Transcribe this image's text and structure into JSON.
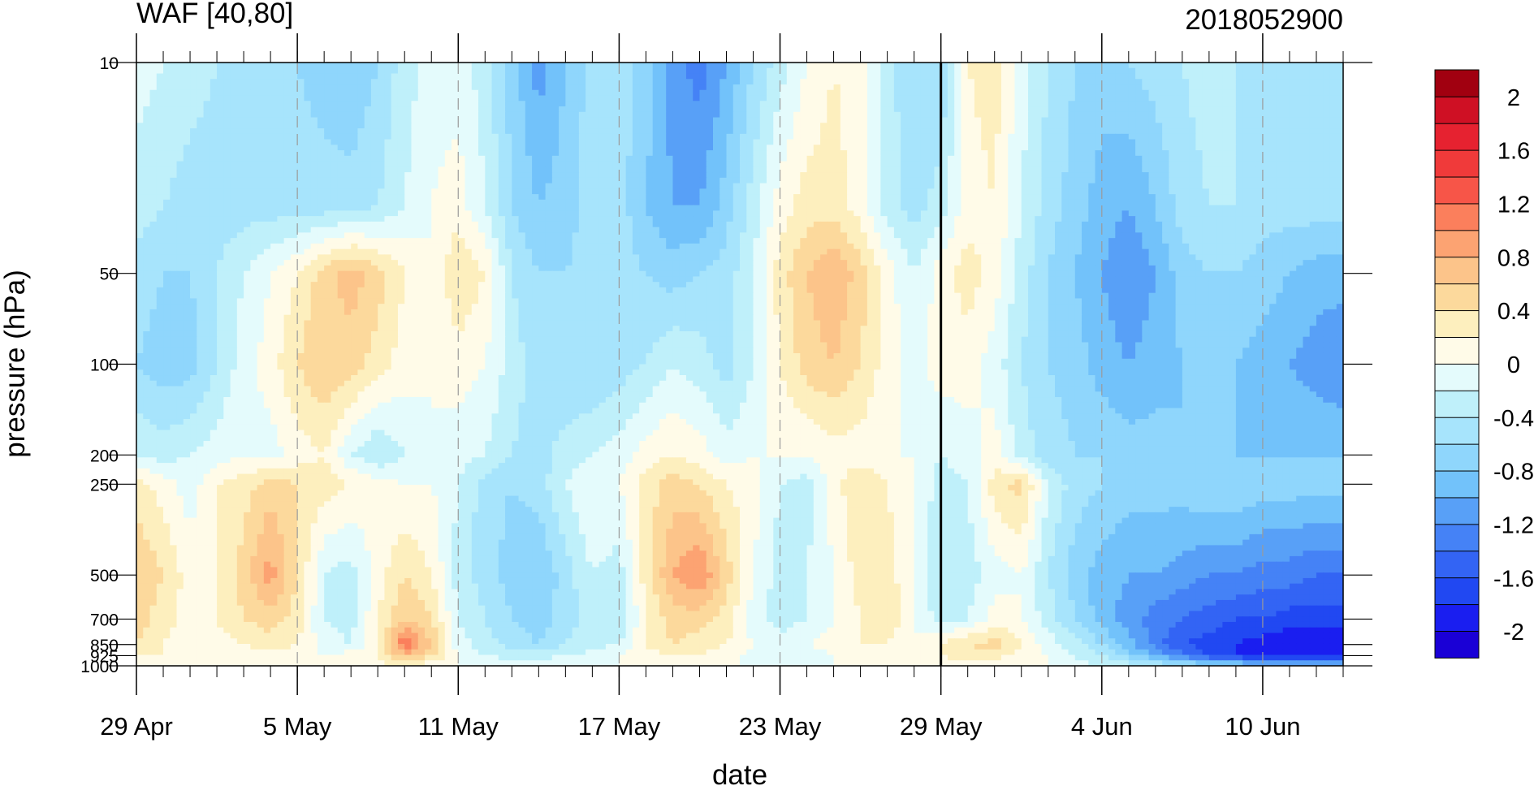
{
  "chart_data": {
    "type": "heatmap",
    "title": "WAF [40,80]",
    "subtitle": "2018052900",
    "xlabel": "date",
    "ylabel": "pressure (hPa)",
    "x_start": "2018-04-29",
    "x_end": "2018-06-13",
    "x_ticks": [
      {
        "label": "29 Apr",
        "date": "2018-04-29"
      },
      {
        "label": "5 May",
        "date": "2018-05-05"
      },
      {
        "label": "11 May",
        "date": "2018-05-11"
      },
      {
        "label": "17 May",
        "date": "2018-05-17"
      },
      {
        "label": "23 May",
        "date": "2018-05-23"
      },
      {
        "label": "29 May",
        "date": "2018-05-29"
      },
      {
        "label": "4 Jun",
        "date": "2018-06-04"
      },
      {
        "label": "10 Jun",
        "date": "2018-06-10"
      }
    ],
    "y_scale": "log",
    "y_reversed": true,
    "ylim": [
      1000,
      10
    ],
    "y_ticks": [
      {
        "label": "10",
        "value": 10
      },
      {
        "label": "50",
        "value": 50
      },
      {
        "label": "100",
        "value": 100
      },
      {
        "label": "200",
        "value": 200
      },
      {
        "label": "250",
        "value": 250
      },
      {
        "label": "500",
        "value": 500
      },
      {
        "label": "700",
        "value": 700
      },
      {
        "label": "850",
        "value": 850
      },
      {
        "label": "925",
        "value": 925
      },
      {
        "label": "1000",
        "value": 1000
      }
    ],
    "marker_line_date": "2018-05-29",
    "colorbar": {
      "levels": [
        -2.2,
        -2.0,
        -1.8,
        -1.6,
        -1.4,
        -1.2,
        -1.0,
        -0.8,
        -0.6,
        -0.4,
        -0.2,
        0,
        0.2,
        0.4,
        0.6,
        0.8,
        1.0,
        1.2,
        1.4,
        1.6,
        1.8,
        2.0,
        2.2
      ],
      "colors": [
        "#1a00d6",
        "#1a1ef0",
        "#2148f2",
        "#3364f4",
        "#4582f6",
        "#58a0f7",
        "#72c2fa",
        "#8fd6fc",
        "#a7e4fc",
        "#bff0fa",
        "#e4fbfc",
        "#fffbe8",
        "#fdefbe",
        "#fcd99c",
        "#fcc48a",
        "#fca372",
        "#fb7f5c",
        "#f75548",
        "#f03a3a",
        "#e62230",
        "#cf1024",
        "#a10010"
      ],
      "tick_labels": [
        {
          "label": "2",
          "value": 2.0
        },
        {
          "label": "1.6",
          "value": 1.6
        },
        {
          "label": "1.2",
          "value": 1.2
        },
        {
          "label": "0.8",
          "value": 0.8
        },
        {
          "label": "0.4",
          "value": 0.4
        },
        {
          "label": "0",
          "value": 0
        },
        {
          "label": "-0.4",
          "value": -0.4
        },
        {
          "label": "-0.8",
          "value": -0.8
        },
        {
          "label": "-1.2",
          "value": -1.2
        },
        {
          "label": "-1.6",
          "value": -1.6
        },
        {
          "label": "-2",
          "value": -2.0
        }
      ]
    },
    "day_values": [
      0,
      1,
      2,
      3,
      4,
      5,
      6,
      7,
      8,
      9,
      10,
      11,
      12,
      13,
      14,
      15,
      16,
      17,
      18,
      19,
      20,
      21,
      22,
      23,
      24,
      25,
      26,
      27,
      28,
      29,
      30,
      31,
      32,
      33,
      34,
      35,
      36,
      37,
      38,
      39,
      40,
      41,
      42,
      43,
      44,
      45
    ],
    "field_levels": [
      10,
      30,
      50,
      100,
      200,
      250,
      500,
      700,
      850,
      925,
      1000
    ],
    "field": [
      [
        -0.1,
        -0.2,
        -0.3,
        -0.4,
        -0.4,
        -0.5,
        -0.6,
        -0.7,
        -0.8,
        -0.6,
        -0.3,
        -0.1,
        -0.1,
        -0.3,
        -0.7,
        -1.1,
        -0.8,
        -0.5,
        -0.5,
        -0.7,
        -1.1,
        -1.3,
        -1.0,
        -0.6,
        -0.3,
        0.0,
        0.2,
        0.1,
        -0.3,
        -0.6,
        -0.6,
        0.2,
        0.3,
        -0.1,
        -0.4,
        -0.6,
        -0.7,
        -0.6,
        -0.5,
        -0.4,
        -0.3,
        -0.4,
        -0.5,
        -0.5,
        -0.5,
        -0.5
      ],
      [
        -0.3,
        -0.4,
        -0.5,
        -0.5,
        -0.5,
        -0.5,
        -0.5,
        -0.5,
        -0.5,
        -0.4,
        -0.2,
        0.0,
        0.1,
        -0.2,
        -0.6,
        -0.8,
        -0.7,
        -0.5,
        -0.5,
        -0.8,
        -1.0,
        -1.0,
        -0.7,
        -0.3,
        0.1,
        0.3,
        0.3,
        0.1,
        -0.3,
        -0.5,
        -0.3,
        0.1,
        0.2,
        -0.2,
        -0.5,
        -0.7,
        -0.9,
        -1.0,
        -0.8,
        -0.5,
        -0.4,
        -0.4,
        -0.5,
        -0.5,
        -0.5,
        -0.5
      ],
      [
        -0.5,
        -0.6,
        -0.6,
        -0.4,
        -0.2,
        0.0,
        0.2,
        0.5,
        0.7,
        0.5,
        0.2,
        0.0,
        0.4,
        0.2,
        -0.4,
        -0.6,
        -0.6,
        -0.5,
        -0.5,
        -0.6,
        -0.7,
        -0.6,
        -0.5,
        -0.2,
        0.3,
        0.6,
        0.8,
        0.5,
        0.1,
        -0.2,
        0.1,
        0.3,
        0.1,
        -0.3,
        -0.6,
        -0.8,
        -1.0,
        -1.2,
        -1.0,
        -0.7,
        -0.6,
        -0.6,
        -0.7,
        -0.8,
        -0.9,
        -0.9
      ],
      [
        -0.6,
        -0.7,
        -0.7,
        -0.4,
        -0.1,
        0.1,
        0.4,
        0.6,
        0.5,
        0.3,
        0.1,
        0.0,
        0.1,
        0.0,
        -0.3,
        -0.5,
        -0.6,
        -0.6,
        -0.5,
        -0.4,
        -0.2,
        -0.3,
        -0.5,
        -0.2,
        0.2,
        0.5,
        0.6,
        0.4,
        0.1,
        -0.1,
        0.1,
        0.1,
        -0.1,
        -0.4,
        -0.6,
        -0.7,
        -0.9,
        -1.0,
        -0.9,
        -0.8,
        -0.8,
        -0.8,
        -0.9,
        -1.0,
        -1.1,
        -1.2
      ],
      [
        -0.2,
        -0.3,
        -0.2,
        -0.1,
        0.0,
        -0.1,
        0.1,
        0.2,
        -0.2,
        -0.4,
        -0.2,
        0.0,
        -0.1,
        -0.2,
        -0.4,
        -0.5,
        -0.3,
        -0.2,
        -0.1,
        0.1,
        0.2,
        0.1,
        -0.1,
        0.0,
        0.0,
        0.0,
        0.1,
        0.1,
        0.0,
        0.0,
        -0.2,
        -0.1,
        0.1,
        -0.3,
        -0.5,
        -0.6,
        -0.6,
        -0.7,
        -0.7,
        -0.8,
        -0.8,
        -0.8,
        -0.8,
        -0.8,
        -0.8,
        -0.8
      ],
      [
        0.3,
        0.1,
        -0.1,
        0.2,
        0.3,
        0.5,
        0.4,
        0.3,
        0.2,
        0.1,
        0.0,
        0.0,
        -0.2,
        -0.5,
        -0.6,
        -0.5,
        -0.2,
        0.0,
        0.0,
        0.3,
        0.5,
        0.4,
        0.2,
        0.1,
        -0.2,
        -0.3,
        0.1,
        0.4,
        0.2,
        0.0,
        -0.3,
        -0.2,
        0.3,
        0.5,
        -0.2,
        -0.5,
        -0.6,
        -0.7,
        -0.7,
        -0.7,
        -0.6,
        -0.6,
        -0.7,
        -0.7,
        -0.7,
        -0.7
      ],
      [
        0.6,
        0.4,
        0.1,
        0.2,
        0.5,
        0.9,
        0.4,
        -0.2,
        -0.3,
        0.1,
        0.4,
        0.2,
        -0.3,
        -0.5,
        -0.7,
        -0.8,
        -0.5,
        -0.2,
        -0.3,
        0.3,
        0.8,
        1.0,
        0.5,
        0.0,
        -0.3,
        -0.2,
        0.0,
        0.3,
        0.3,
        0.0,
        -0.4,
        -0.3,
        -0.1,
        0.0,
        -0.4,
        -0.7,
        -0.9,
        -1.0,
        -1.0,
        -1.1,
        -1.2,
        -1.2,
        -1.3,
        -1.3,
        -1.4,
        -1.4
      ],
      [
        0.5,
        0.3,
        0.1,
        0.2,
        0.4,
        0.5,
        0.3,
        -0.2,
        -0.3,
        0.2,
        0.6,
        0.4,
        -0.2,
        -0.4,
        -0.6,
        -0.7,
        -0.5,
        -0.3,
        -0.4,
        0.2,
        0.5,
        0.5,
        0.3,
        -0.1,
        -0.3,
        -0.2,
        0.0,
        0.2,
        0.4,
        0.0,
        -0.3,
        -0.2,
        0.1,
        0.0,
        -0.3,
        -0.6,
        -0.9,
        -1.1,
        -1.3,
        -1.4,
        -1.5,
        -1.6,
        -1.6,
        -1.7,
        -1.7,
        -1.7
      ],
      [
        0.4,
        0.2,
        0.1,
        0.1,
        0.2,
        0.3,
        0.2,
        -0.1,
        -0.2,
        0.2,
        1.2,
        0.6,
        -0.1,
        -0.3,
        -0.5,
        -0.6,
        -0.4,
        -0.3,
        -0.2,
        0.2,
        0.4,
        0.3,
        0.2,
        0.0,
        -0.1,
        0.0,
        0.1,
        0.2,
        0.2,
        0.0,
        0.2,
        0.4,
        0.5,
        0.2,
        -0.1,
        -0.3,
        -0.6,
        -0.9,
        -1.3,
        -1.6,
        -1.7,
        -1.8,
        -1.9,
        -2.0,
        -2.0,
        -2.0
      ],
      [
        0.2,
        0.2,
        0.1,
        0.1,
        0.1,
        0.1,
        0.1,
        0.0,
        0.1,
        0.2,
        0.7,
        0.4,
        0.0,
        -0.2,
        -0.3,
        -0.3,
        -0.2,
        -0.1,
        0.0,
        0.1,
        0.2,
        0.2,
        0.1,
        -0.1,
        -0.2,
        -0.1,
        0.0,
        0.0,
        0.0,
        0.0,
        0.2,
        0.3,
        0.3,
        0.1,
        0.0,
        -0.2,
        -0.4,
        -0.7,
        -1.0,
        -1.3,
        -1.6,
        -1.8,
        -1.9,
        -2.0,
        -2.0,
        -2.0
      ],
      [
        0.0,
        0.0,
        0.0,
        0.0,
        0.0,
        0.0,
        0.0,
        0.0,
        0.0,
        0.1,
        0.2,
        0.1,
        0.0,
        0.0,
        -0.1,
        -0.1,
        0.0,
        0.0,
        0.0,
        0.1,
        0.1,
        0.1,
        0.0,
        0.0,
        0.0,
        0.0,
        0.0,
        0.0,
        0.0,
        0.0,
        0.1,
        0.1,
        0.1,
        0.0,
        0.0,
        -0.1,
        -0.2,
        -0.3,
        -0.4,
        -0.5,
        -0.6,
        -0.7,
        -0.7,
        -0.7,
        -0.7,
        -0.7
      ]
    ]
  }
}
